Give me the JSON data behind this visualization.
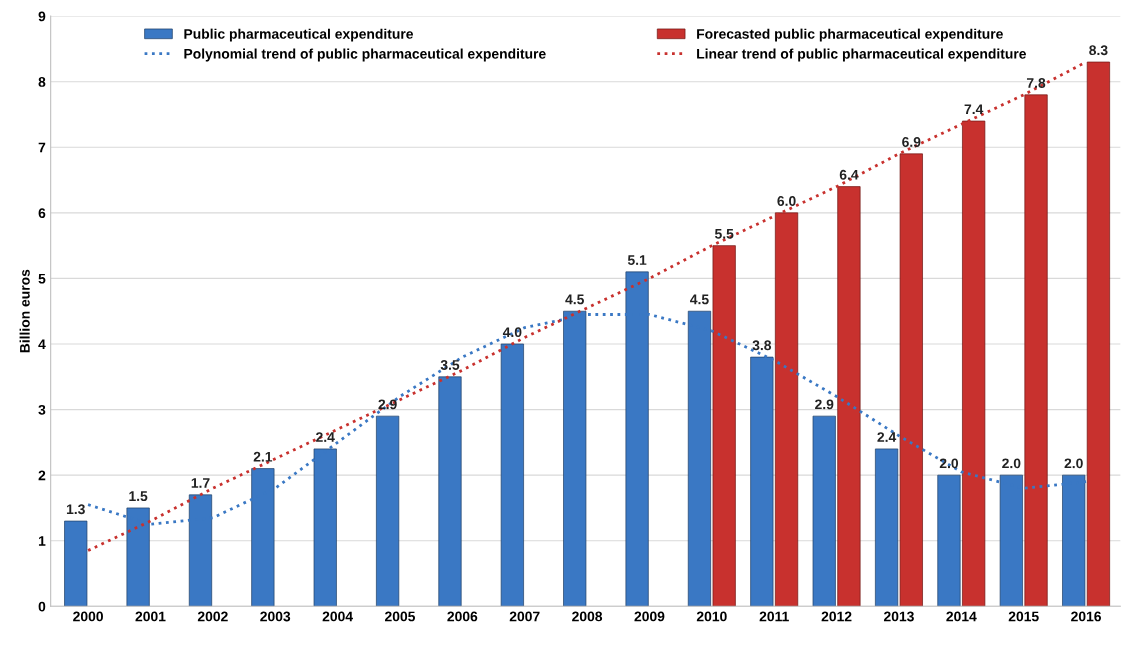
{
  "chart_data": {
    "type": "bar",
    "ylabel": "Billion euros",
    "categories": [
      "2000",
      "2001",
      "2002",
      "2003",
      "2004",
      "2005",
      "2006",
      "2007",
      "2008",
      "2009",
      "2010",
      "2011",
      "2012",
      "2013",
      "2014",
      "2015",
      "2016"
    ],
    "ylim": [
      0,
      9
    ],
    "yticks": [
      0,
      1,
      2,
      3,
      4,
      5,
      6,
      7,
      8,
      9
    ],
    "grid": "y",
    "legend": "top",
    "series": [
      {
        "name": "Public pharmaceutical expenditure",
        "color": "#3a78c4",
        "values": [
          1.3,
          1.5,
          1.7,
          2.1,
          2.4,
          2.9,
          3.5,
          4.0,
          4.5,
          5.1,
          4.5,
          3.8,
          2.9,
          2.4,
          2.0,
          2.0,
          2.0
        ],
        "value_labels": [
          "1.3",
          "1.5",
          "1.7",
          "2.1",
          "2.4",
          "2.9",
          "3.5",
          "4.0",
          "4.5",
          "5.1",
          "4.5",
          "3.8",
          "2.9",
          "2.4",
          "2.0",
          "2.0",
          "2.0"
        ]
      },
      {
        "name": "Forecasted public pharmaceutical expenditure",
        "color": "#c8312e",
        "values": [
          null,
          null,
          null,
          null,
          null,
          null,
          null,
          null,
          null,
          null,
          5.5,
          6.0,
          6.4,
          6.9,
          7.4,
          7.8,
          8.3
        ],
        "value_labels": [
          null,
          null,
          null,
          null,
          null,
          null,
          null,
          null,
          null,
          null,
          "5.5",
          "6.0",
          "6.4",
          "6.9",
          "7.4",
          "7.8",
          "8.3"
        ]
      },
      {
        "name": "Polynomial trend of public pharmaceutical expenditure",
        "type": "line",
        "line_style": "dotted",
        "color": "#3a78c4",
        "values": [
          1.55,
          1.25,
          1.35,
          1.8,
          2.5,
          3.2,
          3.8,
          4.25,
          4.45,
          4.45,
          4.2,
          3.75,
          3.2,
          2.6,
          2.05,
          1.8,
          1.9
        ]
      },
      {
        "name": "Linear trend of public pharmaceutical expenditure",
        "type": "line",
        "line_style": "dotted",
        "color": "#c8312e",
        "values": [
          0.85,
          1.3,
          1.8,
          2.25,
          2.7,
          3.15,
          3.6,
          4.1,
          4.55,
          5.0,
          5.5,
          5.95,
          6.4,
          6.9,
          7.35,
          7.8,
          8.3
        ]
      }
    ]
  }
}
